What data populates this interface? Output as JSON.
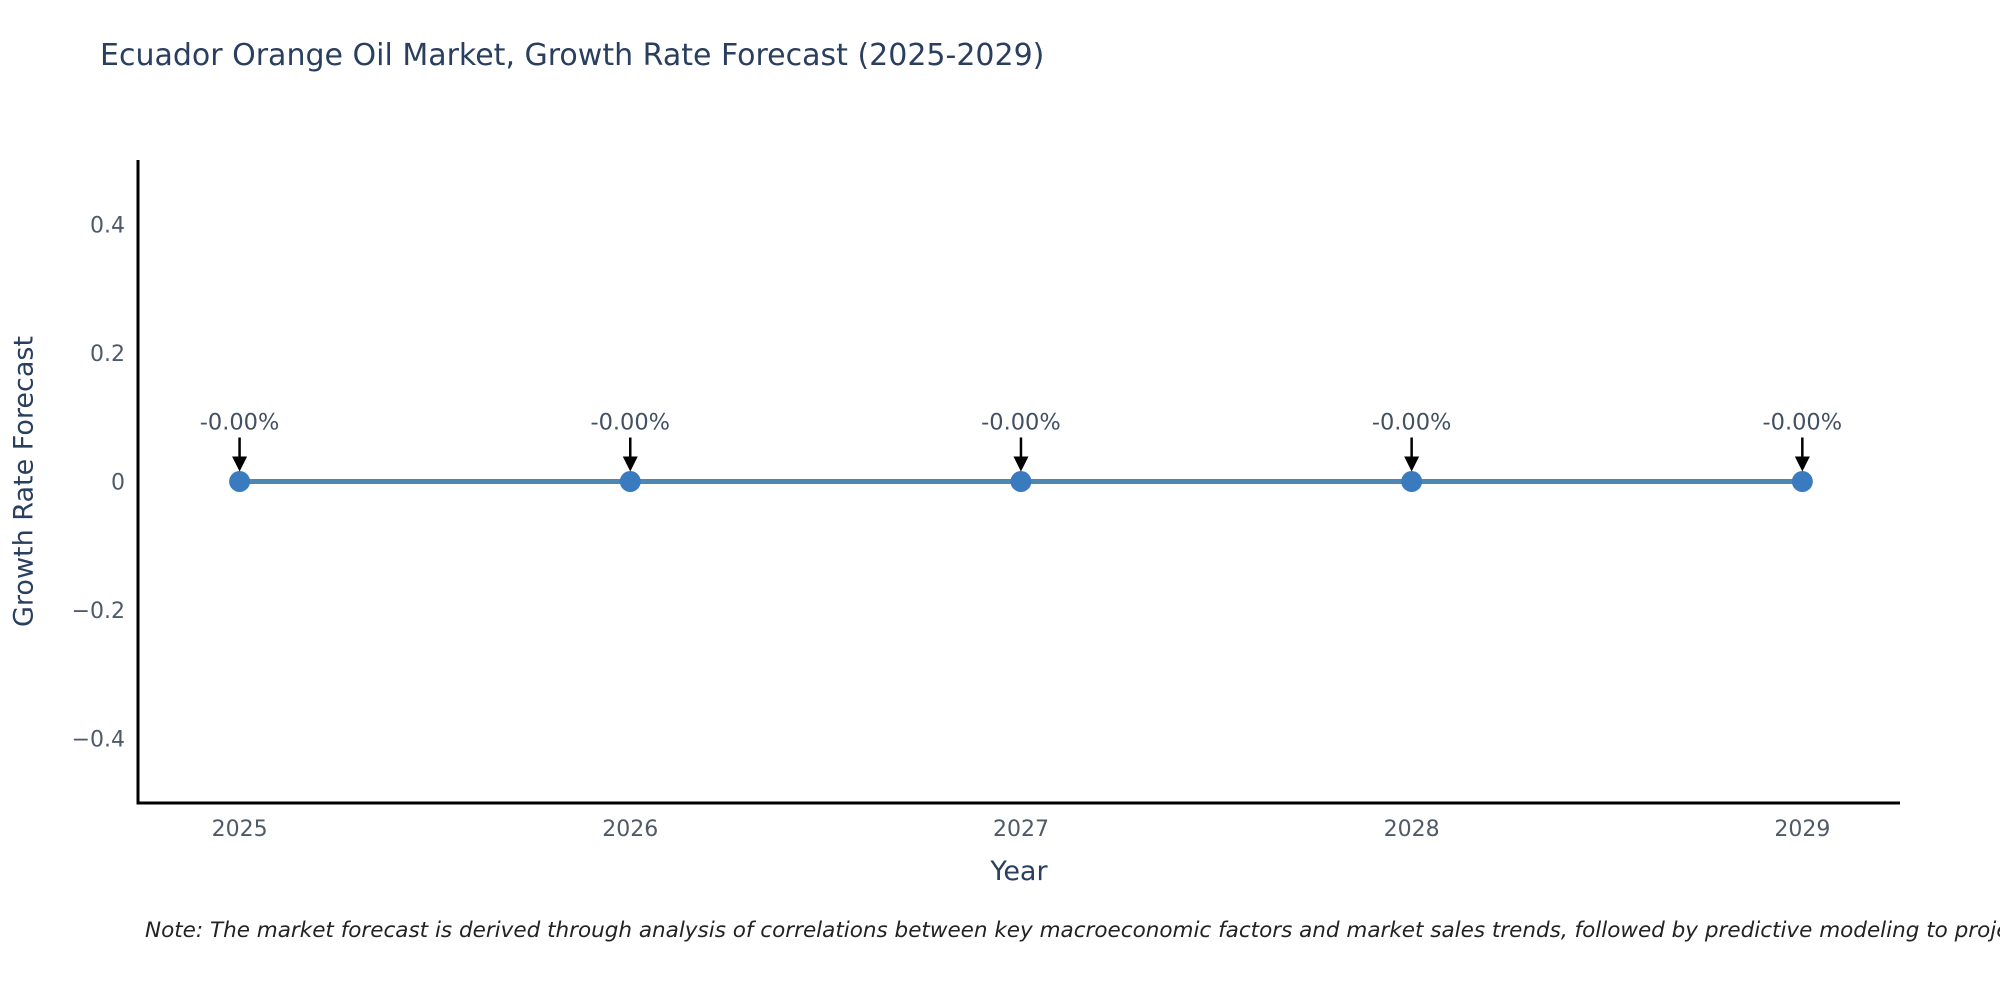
{
  "chart_data": {
    "type": "line",
    "title": "Ecuador Orange Oil Market, Growth Rate Forecast (2025-2029)",
    "xlabel": "Year",
    "ylabel": "Growth Rate Forecast",
    "x": [
      2025,
      2026,
      2027,
      2028,
      2029
    ],
    "series": [
      {
        "name": "Growth Rate Forecast",
        "values": [
          0,
          0,
          0,
          0,
          0
        ]
      }
    ],
    "data_labels": [
      "-0.00%",
      "-0.00%",
      "-0.00%",
      "-0.00%",
      "-0.00%"
    ],
    "xtick_labels": [
      "2025",
      "2026",
      "2027",
      "2028",
      "2029"
    ],
    "ytick_values": [
      0.4,
      0.2,
      0,
      -0.2,
      -0.4
    ],
    "ytick_labels": [
      "0.4",
      "0.2",
      "0",
      "−0.2",
      "−0.4"
    ],
    "xlim": [
      2024.74,
      2029.25
    ],
    "ylim": [
      -0.5,
      0.5
    ],
    "grid": false,
    "legend_position": "none",
    "line_color": "#4e87b2",
    "marker_color": "#3a7bc0",
    "axis_color": "#000000",
    "arrow_color": "#000000"
  },
  "note_text": "Note: The market forecast is derived through analysis of correlations between key macroeconomic factors and market sales trends, followed by predictive modeling to project future sales performance."
}
